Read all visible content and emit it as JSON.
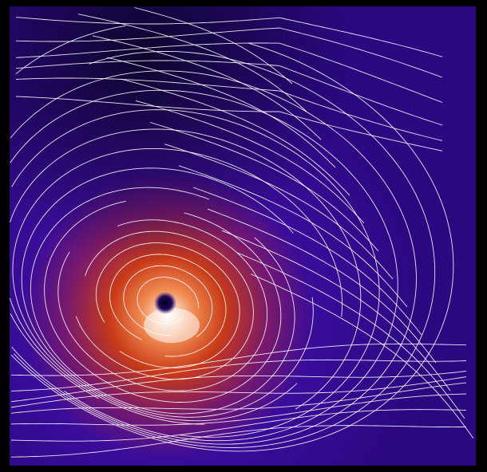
{
  "visualization": {
    "kind": "vortex-streamline-field",
    "colors": {
      "background": "#000000",
      "field_low": "#2a0a8a",
      "field_dark": "#14063a",
      "field_mid": "#c0301a",
      "field_high": "#ffffff",
      "streamline": "#ffffff"
    }
  }
}
